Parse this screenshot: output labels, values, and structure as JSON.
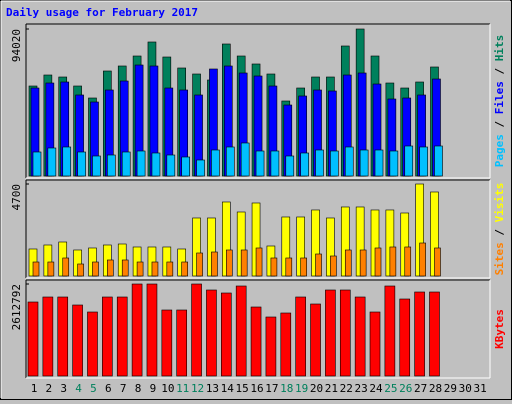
{
  "chart_data": [
    {
      "type": "bar",
      "title": "Daily usage for February 2017",
      "series": [
        {
          "name": "Hits",
          "color": "#00805c",
          "values": [
            57564,
            64600,
            63320,
            57564,
            49890,
            67160,
            70360,
            76750,
            85710,
            76110,
            69080,
            65240,
            61400,
            84430,
            76750,
            71640,
            65240,
            47970,
            56280,
            63320,
            63320,
            83150,
            94020,
            76750,
            59480,
            56280,
            60120,
            69720,
            null,
            null,
            null
          ]
        },
        {
          "name": "Files",
          "color": "#0000ff",
          "values": [
            56280,
            59480,
            60120,
            51810,
            47330,
            55010,
            60760,
            70990,
            70360,
            56280,
            55010,
            51810,
            68440,
            70360,
            65880,
            63960,
            57560,
            45410,
            51170,
            55010,
            54370,
            64600,
            65880,
            58840,
            49250,
            49890,
            51810,
            62040,
            null,
            null,
            null
          ]
        },
        {
          "name": "Pages",
          "color": "#00c0ff",
          "values": [
            15350,
            17910,
            18550,
            15350,
            12790,
            13430,
            15350,
            15990,
            14710,
            13430,
            12150,
            10230,
            16630,
            18550,
            21110,
            15990,
            15990,
            12790,
            14710,
            16630,
            15990,
            18550,
            16630,
            16630,
            15990,
            19190,
            18550,
            19190,
            null,
            null,
            null
          ]
        }
      ],
      "legend_separator": " / ",
      "ylim": [
        0,
        94020
      ],
      "yticks": [
        94020
      ]
    },
    {
      "type": "bar",
      "series": [
        {
          "name": "Visits",
          "color": "#ffff00",
          "values": [
            1380,
            1584,
            1737,
            1329,
            1431,
            1584,
            1635,
            1482,
            1482,
            1482,
            1380,
            2964,
            2964,
            3781,
            3270,
            3730,
            1533,
            3015,
            3015,
            3373,
            2964,
            3526,
            3526,
            3373,
            3373,
            3219,
            4700,
            4292,
            null,
            null,
            null
          ]
        },
        {
          "name": "Sites",
          "color": "#ff8000",
          "values": [
            715,
            715,
            920,
            613,
            715,
            818,
            818,
            715,
            715,
            715,
            715,
            1175,
            1226,
            1329,
            1329,
            1431,
            920,
            920,
            920,
            1124,
            1022,
            1329,
            1329,
            1431,
            1482,
            1482,
            1686,
            1431,
            null,
            null,
            null
          ]
        }
      ],
      "legend_separator": " / ",
      "ylim": [
        0,
        4700
      ],
      "yticks": [
        4700
      ]
    },
    {
      "type": "bar",
      "series": [
        {
          "name": "KBytes",
          "color": "#ff0000",
          "values": [
            2101600,
            2243600,
            2243600,
            2016400,
            1817600,
            2243600,
            2243600,
            2612792,
            2612792,
            1874400,
            1874400,
            2612792,
            2442400,
            2357200,
            2556000,
            1959600,
            1675600,
            1789200,
            2243600,
            2044800,
            2442400,
            2442400,
            2243600,
            1817600,
            2556000,
            2186800,
            2385600,
            2385600,
            null,
            null,
            null
          ]
        }
      ],
      "ylim": [
        0,
        2612792
      ],
      "yticks": [
        2612792
      ],
      "categories": [
        "1",
        "2",
        "3",
        "4",
        "5",
        "6",
        "7",
        "8",
        "9",
        "10",
        "11",
        "12",
        "13",
        "14",
        "15",
        "16",
        "17",
        "18",
        "19",
        "20",
        "21",
        "22",
        "23",
        "24",
        "25",
        "26",
        "27",
        "28",
        "29",
        "30",
        "31"
      ],
      "category_colors": [
        "#000000",
        "#000000",
        "#000000",
        "#00805c",
        "#00805c",
        "#000000",
        "#000000",
        "#000000",
        "#000000",
        "#000000",
        "#00805c",
        "#00805c",
        "#000000",
        "#000000",
        "#000000",
        "#000000",
        "#000000",
        "#00805c",
        "#00805c",
        "#000000",
        "#000000",
        "#000000",
        "#000000",
        "#000000",
        "#00805c",
        "#00805c",
        "#000000",
        "#000000",
        "#000000",
        "#000000",
        "#000000"
      ]
    }
  ]
}
